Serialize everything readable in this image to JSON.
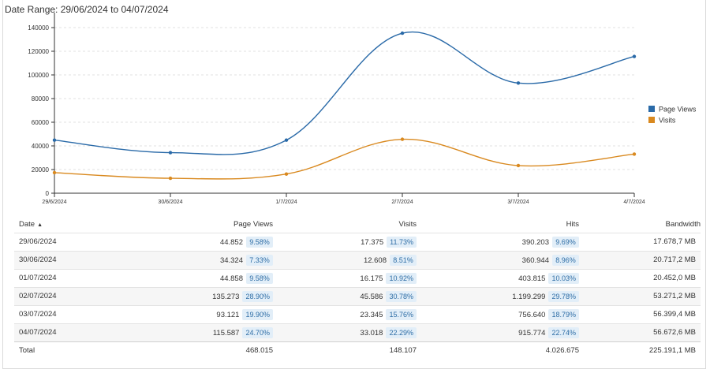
{
  "header": {
    "date_range": "Date Range: 29/06/2024 to 04/07/2024"
  },
  "colors": {
    "page_views": "#2a6aa8",
    "visits": "#d9891f",
    "grid": "#e2e2e2",
    "pct_bg": "#e2eef8",
    "pct_text": "#2f6ea6"
  },
  "chart_data": {
    "type": "line",
    "categories": [
      "29/6/2024",
      "30/6/2024",
      "1/7/2024",
      "2/7/2024",
      "3/7/2024",
      "4/7/2024"
    ],
    "series": [
      {
        "name": "Page Views",
        "values": [
          44852,
          34324,
          44858,
          135273,
          93121,
          115587
        ]
      },
      {
        "name": "Visits",
        "values": [
          17375,
          12608,
          16175,
          45586,
          23345,
          33018
        ]
      }
    ],
    "yticks": [
      "0",
      "20000",
      "40000",
      "60000",
      "80000",
      "100000",
      "120000",
      "140000"
    ],
    "ylim": [
      0,
      150000
    ],
    "grid": true,
    "legend_position": "right"
  },
  "table": {
    "headers": {
      "date": "Date",
      "page_views": "Page Views",
      "visits": "Visits",
      "hits": "Hits",
      "bandwidth": "Bandwidth"
    },
    "rows": [
      {
        "date": "29/06/2024",
        "page_views": "44.852",
        "pv_pct": "9.58%",
        "visits": "17.375",
        "v_pct": "11.73%",
        "hits": "390.203",
        "h_pct": "9.69%",
        "bandwidth": "17.678,7 MB"
      },
      {
        "date": "30/06/2024",
        "page_views": "34.324",
        "pv_pct": "7.33%",
        "visits": "12.608",
        "v_pct": "8.51%",
        "hits": "360.944",
        "h_pct": "8.96%",
        "bandwidth": "20.717,2 MB"
      },
      {
        "date": "01/07/2024",
        "page_views": "44.858",
        "pv_pct": "9.58%",
        "visits": "16.175",
        "v_pct": "10.92%",
        "hits": "403.815",
        "h_pct": "10.03%",
        "bandwidth": "20.452,0 MB"
      },
      {
        "date": "02/07/2024",
        "page_views": "135.273",
        "pv_pct": "28.90%",
        "visits": "45.586",
        "v_pct": "30.78%",
        "hits": "1.199.299",
        "h_pct": "29.78%",
        "bandwidth": "53.271,2 MB"
      },
      {
        "date": "03/07/2024",
        "page_views": "93.121",
        "pv_pct": "19.90%",
        "visits": "23.345",
        "v_pct": "15.76%",
        "hits": "756.640",
        "h_pct": "18.79%",
        "bandwidth": "56.399,4 MB"
      },
      {
        "date": "04/07/2024",
        "page_views": "115.587",
        "pv_pct": "24.70%",
        "visits": "33.018",
        "v_pct": "22.29%",
        "hits": "915.774",
        "h_pct": "22.74%",
        "bandwidth": "56.672,6 MB"
      }
    ],
    "total": {
      "label": "Total",
      "page_views": "468.015",
      "visits": "148.107",
      "hits": "4.026.675",
      "bandwidth": "225.191,1 MB"
    }
  }
}
